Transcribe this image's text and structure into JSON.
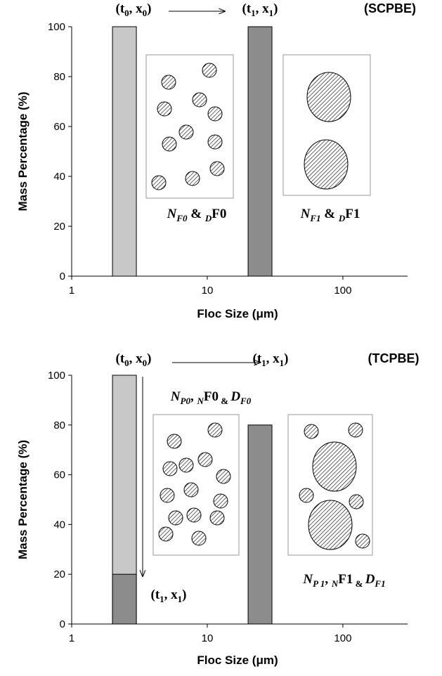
{
  "chart_data": [
    {
      "type": "bar",
      "log_x": true,
      "xlabel": "Floc Size (μm)",
      "ylabel": "Mass Percentage (%)",
      "xlim": [
        1,
        300
      ],
      "xticks": [
        1,
        10,
        100
      ],
      "ylim": [
        0,
        100
      ],
      "yticks": [
        0,
        20,
        40,
        60,
        80,
        100
      ],
      "bar_edges": [
        [
          2,
          3
        ],
        [
          20,
          30
        ]
      ],
      "series": [
        {
          "color": "#c8c8c8",
          "values": [
            100,
            null
          ]
        },
        {
          "color": "#8c8c8c",
          "values": [
            null,
            100
          ]
        }
      ],
      "annotations": [
        {
          "parts": [
            "(t",
            "0",
            ", x",
            "0",
            ")"
          ]
        },
        {
          "parts": [
            "(t",
            "1",
            ", x",
            "1",
            ")"
          ]
        },
        {
          "parts": [
            "(SCPBE)"
          ]
        },
        {
          "parts": [
            "N",
            "F0",
            " & ",
            "D",
            "F0"
          ]
        },
        {
          "parts": [
            "N",
            "F1",
            " & ",
            "D",
            "F1"
          ]
        }
      ]
    },
    {
      "type": "bar",
      "log_x": true,
      "xlabel": "Floc Size (μm)",
      "ylabel": "Mass Percentage (%)",
      "xlim": [
        1,
        300
      ],
      "xticks": [
        1,
        10,
        100
      ],
      "ylim": [
        0,
        100
      ],
      "yticks": [
        0,
        20,
        40,
        60,
        80,
        100
      ],
      "bar_edges": [
        [
          2,
          3
        ],
        [
          20,
          30
        ]
      ],
      "series": [
        {
          "color": "#c8c8c8",
          "values": [
            100,
            null
          ]
        },
        {
          "color": "#8c8c8c",
          "values": [
            20,
            80
          ]
        }
      ],
      "annotations": [
        {
          "parts": [
            "(t",
            "0",
            ", x",
            "0",
            ")"
          ]
        },
        {
          "parts": [
            "(t",
            "1",
            ", x",
            "1",
            ")"
          ]
        },
        {
          "parts": [
            "(TCPBE)"
          ]
        },
        {
          "parts": [
            "N",
            "P0",
            ", ",
            "N",
            "F0",
            " & ",
            "D",
            "F0"
          ]
        },
        {
          "parts": [
            "(t",
            "1",
            ", x",
            "1",
            ")"
          ]
        },
        {
          "parts": [
            "N",
            "P 1",
            ", ",
            "N",
            "F1",
            " & ",
            "D",
            "F1"
          ]
        }
      ]
    }
  ]
}
